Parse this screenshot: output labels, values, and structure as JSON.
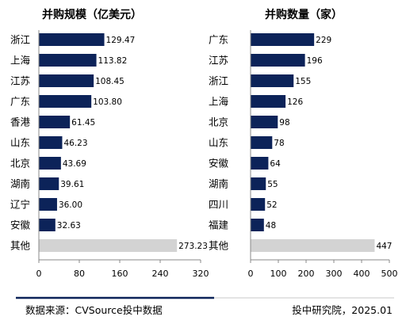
{
  "colors": {
    "bar": "#0c2359",
    "other_bar": "#d3d3d3",
    "axis": "#888888",
    "divider": "#0c2359"
  },
  "chart_data": [
    {
      "type": "bar",
      "orientation": "horizontal",
      "title": "并购规模（亿美元）",
      "categories": [
        "浙江",
        "上海",
        "江苏",
        "广东",
        "香港",
        "山东",
        "北京",
        "湖南",
        "辽宁",
        "安徽",
        "其他"
      ],
      "values": [
        129.47,
        113.82,
        108.45,
        103.8,
        61.45,
        46.23,
        43.69,
        39.61,
        36.0,
        32.63,
        273.23
      ],
      "value_labels": [
        "129.47",
        "113.82",
        "108.45",
        "103.80",
        "61.45",
        "46.23",
        "43.69",
        "39.61",
        "36.00",
        "32.63",
        "273.23"
      ],
      "xlim": [
        0,
        320
      ],
      "xticks": [
        "0",
        "80",
        "160",
        "240",
        "320"
      ]
    },
    {
      "type": "bar",
      "orientation": "horizontal",
      "title": "并购数量（家）",
      "categories": [
        "广东",
        "江苏",
        "浙江",
        "上海",
        "北京",
        "山东",
        "安徽",
        "湖南",
        "四川",
        "福建",
        "其他"
      ],
      "values": [
        229,
        196,
        155,
        126,
        98,
        78,
        64,
        55,
        52,
        48,
        447
      ],
      "value_labels": [
        "229",
        "196",
        "155",
        "126",
        "98",
        "78",
        "64",
        "55",
        "52",
        "48",
        "447"
      ],
      "xlim": [
        0,
        500
      ],
      "xticks": [
        "0",
        "100",
        "200",
        "300",
        "400",
        "500"
      ]
    }
  ],
  "footer": {
    "source": "数据来源：CVSource投中数据",
    "credit": "投中研究院，2025.01"
  }
}
